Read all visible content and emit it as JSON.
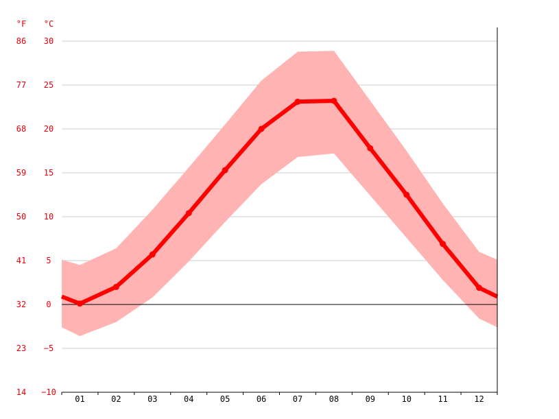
{
  "chart_data": {
    "type": "line",
    "units": {
      "fahrenheit": "°F",
      "celsius": "°C"
    },
    "categories": [
      "01",
      "02",
      "03",
      "04",
      "05",
      "06",
      "07",
      "08",
      "09",
      "10",
      "11",
      "12"
    ],
    "y_ticks_c": [
      "30",
      "25",
      "20",
      "15",
      "10",
      "5",
      "0",
      "−5",
      "−10"
    ],
    "y_ticks_f": [
      "86",
      "77",
      "68",
      "59",
      "50",
      "41",
      "32",
      "23",
      "14"
    ],
    "ylim": [
      -10,
      30
    ],
    "grid": true,
    "zero_line": true,
    "series": [
      {
        "values": [
          0.1,
          2.0,
          5.7,
          10.4,
          15.3,
          20.0,
          23.1,
          23.2,
          17.8,
          12.5,
          6.9,
          1.9
        ]
      }
    ],
    "band_high": [
      4.5,
      6.4,
      10.8,
      15.6,
      20.5,
      25.5,
      28.8,
      28.9,
      23.2,
      17.5,
      11.5,
      6.0
    ],
    "band_low": [
      -3.6,
      -2.0,
      0.8,
      4.9,
      9.4,
      13.7,
      16.8,
      17.2,
      12.4,
      7.6,
      2.8,
      -1.6
    ],
    "edge_left": {
      "value": 0.9,
      "high": 5.1,
      "low": -2.6
    },
    "edge_right": {
      "value": 0.9,
      "high": 5.1,
      "low": -2.6
    },
    "colors": {
      "line": "#ff0000",
      "band": "#ffb3b3",
      "grid": "#cccccc",
      "axis_label": "#e8000b"
    }
  }
}
